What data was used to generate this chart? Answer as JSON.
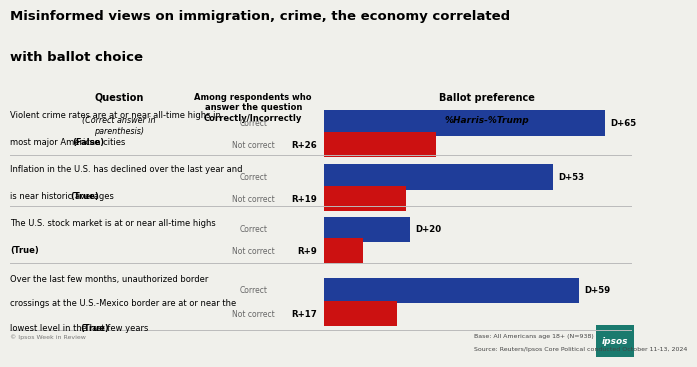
{
  "title_line1": "Misinformed views on immigration, crime, the economy correlated",
  "title_line2": "with ballot choice",
  "col1_header": "Question",
  "col1_subheader": "(Correct answer in\nparenthesis)",
  "col2_header": "Among respondents who\nanswer the question\nCorrectly/Incorrectly",
  "col3_header": "Ballot preference",
  "col3_subheader": "%Harris-%Trump",
  "rows": [
    {
      "question_line1": "Violent crime rates are at or near all-time highs in",
      "question_line2": "most major American cities ",
      "question_bold": "(False)",
      "correct_label": "Correct",
      "incorrect_label": "Not correct",
      "correct_value": 65,
      "correct_display": "D+65",
      "incorrect_value": 26,
      "incorrect_display": "R+26"
    },
    {
      "question_line1": "Inflation in the U.S. has declined over the last year and",
      "question_line2": "is near historic averages ",
      "question_bold": "(True)",
      "correct_label": "Correct",
      "incorrect_label": "Not correct",
      "correct_value": 53,
      "correct_display": "D+53",
      "incorrect_value": 19,
      "incorrect_display": "R+19"
    },
    {
      "question_line1": "The U.S. stock market is at or near all-time highs",
      "question_line2": "",
      "question_bold": "(True)",
      "correct_label": "Correct",
      "incorrect_label": "Not correct",
      "correct_value": 20,
      "correct_display": "D+20",
      "incorrect_value": 9,
      "incorrect_display": "R+9"
    },
    {
      "question_line1": "Over the last few months, unauthorized border",
      "question_line2": "crossings at the U.S.-Mexico border are at or near the",
      "question_line3": "lowest level in the last few years ",
      "question_bold": "(True)",
      "correct_label": "Correct",
      "incorrect_label": "Not correct",
      "correct_value": 59,
      "correct_display": "D+59",
      "incorrect_value": 17,
      "incorrect_display": "R+17"
    }
  ],
  "bar_color_D": "#1f3d99",
  "bar_color_R": "#cc1111",
  "background_color": "#f0f0eb",
  "divider_color": "#bbbbbb",
  "footnote_left": "© Ipsos Week in Review",
  "footnote_right_line1": "Base: All Americans age 18+ (N=938)",
  "footnote_right_line2": "Source: Reuters/Ipsos Core Political conducted October 11-13, 2024",
  "ipsos_box_color": "#1a7a6e",
  "bar_max": 65
}
